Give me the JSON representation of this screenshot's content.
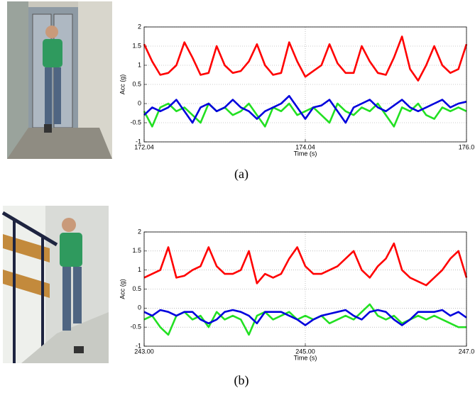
{
  "chart_data": [
    {
      "type": "line",
      "caption": "(a)",
      "xlabel": "Time (s)",
      "ylabel": "Acc (g)",
      "x": [
        172.04,
        172.14,
        172.24,
        172.34,
        172.44,
        172.54,
        172.64,
        172.74,
        172.84,
        172.94,
        173.04,
        173.14,
        173.24,
        173.34,
        173.44,
        173.54,
        173.64,
        173.74,
        173.84,
        173.94,
        174.04,
        174.14,
        174.24,
        174.34,
        174.44,
        174.54,
        174.64,
        174.74,
        174.84,
        174.94,
        175.04,
        175.14,
        175.24,
        175.34,
        175.44,
        175.54,
        175.64,
        175.74,
        175.84,
        175.94,
        176.04
      ],
      "series": [
        {
          "color": "#ff0000",
          "values": [
            1.55,
            1.1,
            0.75,
            0.8,
            1.0,
            1.6,
            1.2,
            0.75,
            0.8,
            1.5,
            1.0,
            0.8,
            0.85,
            1.1,
            1.55,
            1.0,
            0.75,
            0.8,
            1.6,
            1.1,
            0.7,
            0.85,
            1.0,
            1.55,
            1.05,
            0.8,
            0.8,
            1.5,
            1.1,
            0.8,
            0.75,
            1.2,
            1.75,
            0.9,
            0.6,
            1.0,
            1.5,
            1.0,
            0.8,
            0.9,
            1.55
          ]
        },
        {
          "color": "#22e022",
          "values": [
            -0.2,
            -0.6,
            -0.1,
            0.0,
            -0.2,
            -0.1,
            -0.3,
            -0.5,
            0.0,
            -0.2,
            -0.1,
            -0.3,
            -0.2,
            0.0,
            -0.3,
            -0.6,
            -0.1,
            -0.2,
            0.0,
            -0.3,
            -0.2,
            -0.1,
            -0.3,
            -0.5,
            0.0,
            -0.2,
            -0.3,
            -0.1,
            -0.2,
            0.0,
            -0.3,
            -0.6,
            -0.1,
            -0.2,
            0.0,
            -0.3,
            -0.4,
            -0.1,
            -0.2,
            -0.1,
            -0.2
          ]
        },
        {
          "color": "#0000dd",
          "values": [
            -0.3,
            -0.1,
            -0.2,
            -0.1,
            0.1,
            -0.2,
            -0.5,
            -0.1,
            0.0,
            -0.2,
            -0.1,
            0.1,
            -0.1,
            -0.2,
            -0.4,
            -0.2,
            -0.1,
            0.0,
            0.2,
            -0.1,
            -0.4,
            -0.1,
            -0.05,
            0.1,
            -0.2,
            -0.5,
            -0.1,
            0.0,
            0.1,
            -0.1,
            -0.2,
            -0.05,
            0.1,
            -0.1,
            -0.2,
            -0.1,
            0.0,
            0.1,
            -0.1,
            0.0,
            0.05
          ]
        }
      ],
      "xlim": [
        172.04,
        176.04
      ],
      "xticks": [
        {
          "value": 172.04,
          "label": "172.04"
        },
        {
          "value": 174.04,
          "label": "174.04"
        },
        {
          "value": 176.04,
          "label": "176.0"
        }
      ],
      "ylim": [
        -1,
        2
      ],
      "yticks": [
        -1,
        -0.5,
        0,
        0.5,
        1,
        1.5,
        2
      ],
      "grid": true
    },
    {
      "type": "line",
      "caption": "(b)",
      "xlabel": "Time (s)",
      "ylabel": "Acc (g)",
      "x": [
        243.0,
        243.1,
        243.2,
        243.3,
        243.4,
        243.5,
        243.6,
        243.7,
        243.8,
        243.9,
        244.0,
        244.1,
        244.2,
        244.3,
        244.4,
        244.5,
        244.6,
        244.7,
        244.8,
        244.9,
        245.0,
        245.1,
        245.2,
        245.3,
        245.4,
        245.5,
        245.6,
        245.7,
        245.8,
        245.9,
        246.0,
        246.1,
        246.2,
        246.3,
        246.4,
        246.5,
        246.6,
        246.7,
        246.8,
        246.9,
        247.0
      ],
      "series": [
        {
          "color": "#ff0000",
          "values": [
            0.8,
            0.9,
            1.0,
            1.6,
            0.8,
            0.85,
            1.0,
            1.1,
            1.6,
            1.1,
            0.9,
            0.9,
            1.0,
            1.5,
            0.65,
            0.9,
            0.8,
            0.9,
            1.3,
            1.6,
            1.1,
            0.9,
            0.9,
            1.0,
            1.1,
            1.3,
            1.5,
            1.0,
            0.8,
            1.1,
            1.3,
            1.7,
            1.0,
            0.8,
            0.7,
            0.6,
            0.8,
            1.0,
            1.3,
            1.5,
            0.8
          ]
        },
        {
          "color": "#22e022",
          "values": [
            -0.3,
            -0.2,
            -0.5,
            -0.7,
            -0.2,
            -0.1,
            -0.3,
            -0.2,
            -0.5,
            -0.1,
            -0.3,
            -0.2,
            -0.3,
            -0.7,
            -0.2,
            -0.1,
            -0.3,
            -0.2,
            -0.1,
            -0.3,
            -0.2,
            -0.3,
            -0.2,
            -0.4,
            -0.3,
            -0.2,
            -0.3,
            -0.1,
            0.1,
            -0.2,
            -0.3,
            -0.2,
            -0.4,
            -0.3,
            -0.2,
            -0.3,
            -0.2,
            -0.3,
            -0.4,
            -0.5,
            -0.5
          ]
        },
        {
          "color": "#0000dd",
          "values": [
            -0.1,
            -0.2,
            -0.05,
            -0.1,
            -0.2,
            -0.1,
            -0.1,
            -0.3,
            -0.4,
            -0.3,
            -0.1,
            -0.05,
            -0.1,
            -0.2,
            -0.4,
            -0.1,
            -0.1,
            -0.1,
            -0.2,
            -0.3,
            -0.45,
            -0.3,
            -0.2,
            -0.15,
            -0.1,
            -0.05,
            -0.2,
            -0.3,
            -0.1,
            -0.05,
            -0.1,
            -0.3,
            -0.45,
            -0.3,
            -0.1,
            -0.1,
            -0.1,
            -0.05,
            -0.2,
            -0.1,
            -0.25
          ]
        }
      ],
      "xlim": [
        243.0,
        247.0
      ],
      "xticks": [
        {
          "value": 243.0,
          "label": "243.00"
        },
        {
          "value": 245.0,
          "label": "245.00"
        },
        {
          "value": 247.0,
          "label": "247.0"
        }
      ],
      "ylim": [
        -1,
        2
      ],
      "yticks": [
        -1,
        -0.5,
        0,
        0.5,
        1,
        1.5,
        2
      ],
      "grid": true
    }
  ]
}
